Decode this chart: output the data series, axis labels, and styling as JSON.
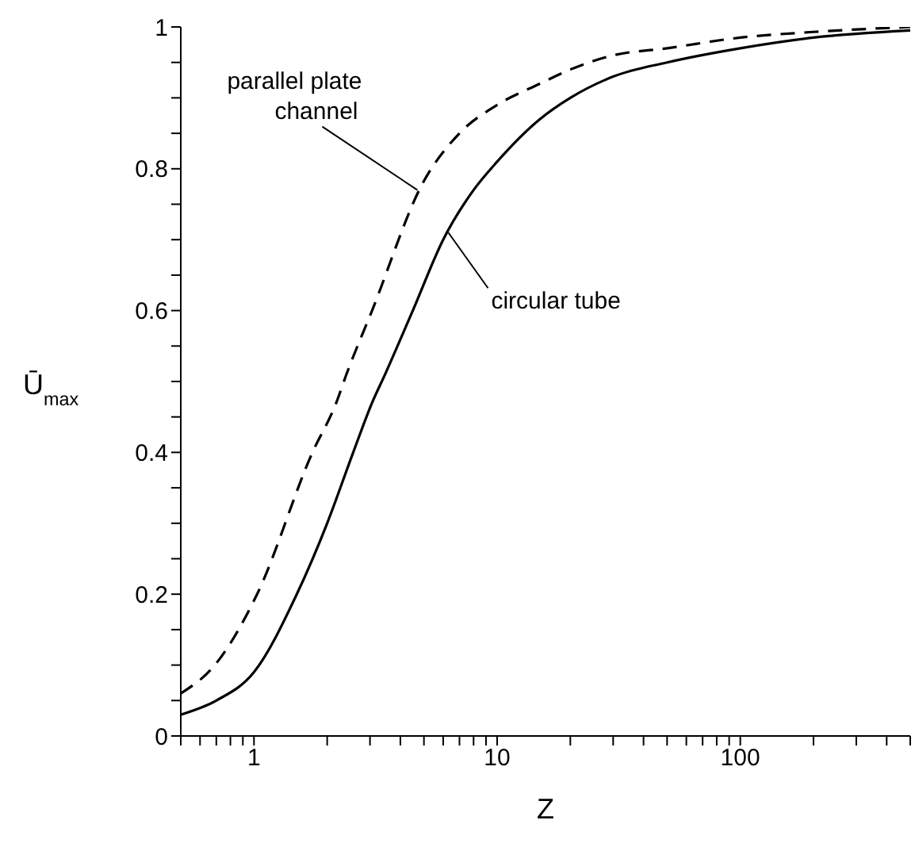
{
  "chart_data": {
    "type": "line",
    "xlabel": "Z",
    "ylabel": "Ū$_{max}$",
    "log": "x",
    "xlim": [
      0.5,
      500
    ],
    "xticks": [
      {
        "value": 0.5,
        "label": null
      },
      {
        "value": 0.6,
        "label": null
      },
      {
        "value": 0.7,
        "label": null
      },
      {
        "value": 0.8,
        "label": null
      },
      {
        "value": 0.9,
        "label": null
      },
      1,
      {
        "value": 2,
        "label": null
      },
      {
        "value": 3,
        "label": null
      },
      {
        "value": 4,
        "label": null
      },
      {
        "value": 5,
        "label": null
      },
      {
        "value": 6,
        "label": null
      },
      {
        "value": 7,
        "label": null
      },
      {
        "value": 8,
        "label": null
      },
      {
        "value": 9,
        "label": null
      },
      10,
      {
        "value": 20,
        "label": null
      },
      {
        "value": 30,
        "label": null
      },
      {
        "value": 40,
        "label": null
      },
      {
        "value": 50,
        "label": null
      },
      {
        "value": 60,
        "label": null
      },
      {
        "value": 70,
        "label": null
      },
      {
        "value": 80,
        "label": null
      },
      {
        "value": 90,
        "label": null
      },
      100,
      {
        "value": 200,
        "label": null
      },
      {
        "value": 300,
        "label": null
      },
      {
        "value": 400,
        "label": null
      },
      {
        "value": 500,
        "label": null
      }
    ],
    "ylim": [
      0,
      1
    ],
    "yticks": [
      0,
      {
        "value": 0.05,
        "label": null
      },
      {
        "value": 0.1,
        "label": null
      },
      {
        "value": 0.15,
        "label": null
      },
      0.2,
      {
        "value": 0.25,
        "label": null
      },
      {
        "value": 0.3,
        "label": null
      },
      {
        "value": 0.35,
        "label": null
      },
      0.4,
      {
        "value": 0.45,
        "label": null
      },
      {
        "value": 0.5,
        "label": null
      },
      {
        "value": 0.55,
        "label": null
      },
      0.6,
      {
        "value": 0.65,
        "label": null
      },
      {
        "value": 0.7,
        "label": null
      },
      {
        "value": 0.75,
        "label": null
      },
      0.8,
      {
        "value": 0.85,
        "label": null
      },
      {
        "value": 0.9,
        "label": null
      },
      {
        "value": 0.95,
        "label": null
      },
      1
    ],
    "marker": "none",
    "series": [
      {
        "color": "#000000",
        "line_style": "solid",
        "x": [
          0.5,
          0.7,
          1,
          1.5,
          2,
          2.56,
          3.06,
          3.46,
          4.5,
          6,
          8,
          10,
          15,
          20,
          30,
          50,
          100,
          200,
          500
        ],
        "values": [
          0.03,
          0.05,
          0.09,
          0.2,
          0.3,
          0.4,
          0.47,
          0.51,
          0.6,
          0.7,
          0.77,
          0.81,
          0.87,
          0.9,
          0.93,
          0.95,
          0.97,
          0.985,
          0.995
        ]
      },
      {
        "color": "#000000",
        "line_style": "dashed",
        "x": [
          0.5,
          0.69,
          1.03,
          1.74,
          2.18,
          2.4,
          3.06,
          4.95,
          7,
          10,
          15,
          20,
          30,
          50,
          100,
          200,
          500
        ],
        "values": [
          0.06,
          0.1,
          0.2,
          0.4,
          0.47,
          0.51,
          0.6,
          0.78,
          0.85,
          0.89,
          0.92,
          0.94,
          0.96,
          0.97,
          0.985,
          0.993,
          1.0
        ]
      }
    ],
    "annotations": [
      {
        "text": "parallel plate channel",
        "x": 4.7,
        "y": 0.77
      },
      {
        "text": "circular tube",
        "x": 6.3,
        "y": 0.71
      }
    ]
  }
}
